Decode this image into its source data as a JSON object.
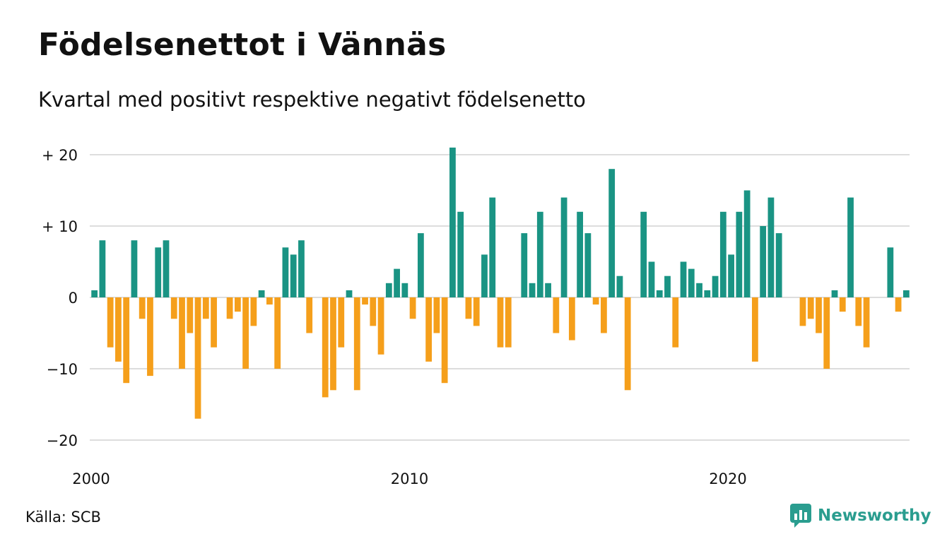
{
  "title": "Födelsenettot i Vännäs",
  "subtitle": "Kvartal med positivt respektive negativt födelsenetto",
  "source": "Källa: SCB",
  "brand": {
    "name": "Newsworthy",
    "icon": "newsworthy-logo-icon",
    "color": "#2a9d8f"
  },
  "colors": {
    "positive": "#1a9484",
    "negative": "#f59f1b",
    "grid": "#dddddd"
  },
  "chart_data": {
    "type": "bar",
    "title": "Födelsenettot i Vännäs",
    "subtitle": "Kvartal med positivt respektive negativt födelsenetto",
    "xlabel": "",
    "ylabel": "",
    "ylim": [
      -22,
      21
    ],
    "y_ticks": [
      {
        "value": 20,
        "label": "+ 20"
      },
      {
        "value": 10,
        "label": "+ 10"
      },
      {
        "value": 0,
        "label": "0"
      },
      {
        "value": -10,
        "label": "−10"
      },
      {
        "value": -20,
        "label": "−20"
      }
    ],
    "x_ticks": [
      {
        "index": 0,
        "label": "2000"
      },
      {
        "index": 40,
        "label": "2010"
      },
      {
        "index": 80,
        "label": "2020"
      }
    ],
    "grid": true,
    "legend": "none",
    "start": "2000 Q1",
    "frequency": "quarterly",
    "values": [
      1,
      8,
      -7,
      -9,
      -12,
      8,
      -3,
      -11,
      7,
      8,
      -3,
      -10,
      -5,
      -17,
      -3,
      -7,
      0,
      -3,
      -2,
      -10,
      -4,
      1,
      -1,
      -10,
      7,
      6,
      8,
      -5,
      0,
      -14,
      -13,
      -7,
      1,
      -13,
      -1,
      -4,
      -8,
      2,
      4,
      2,
      -3,
      9,
      -9,
      -5,
      -12,
      21,
      12,
      -3,
      -4,
      6,
      14,
      -7,
      -7,
      0,
      9,
      2,
      12,
      2,
      -5,
      14,
      -6,
      12,
      9,
      -1,
      -5,
      18,
      3,
      -13,
      0,
      12,
      5,
      1,
      3,
      -7,
      5,
      4,
      2,
      1,
      3,
      12,
      6,
      12,
      15,
      -9,
      10,
      14,
      9,
      0,
      0,
      -4,
      -3,
      -5,
      -10,
      1,
      -2,
      14,
      -4,
      -7,
      0,
      0,
      7,
      -2,
      1
    ]
  }
}
